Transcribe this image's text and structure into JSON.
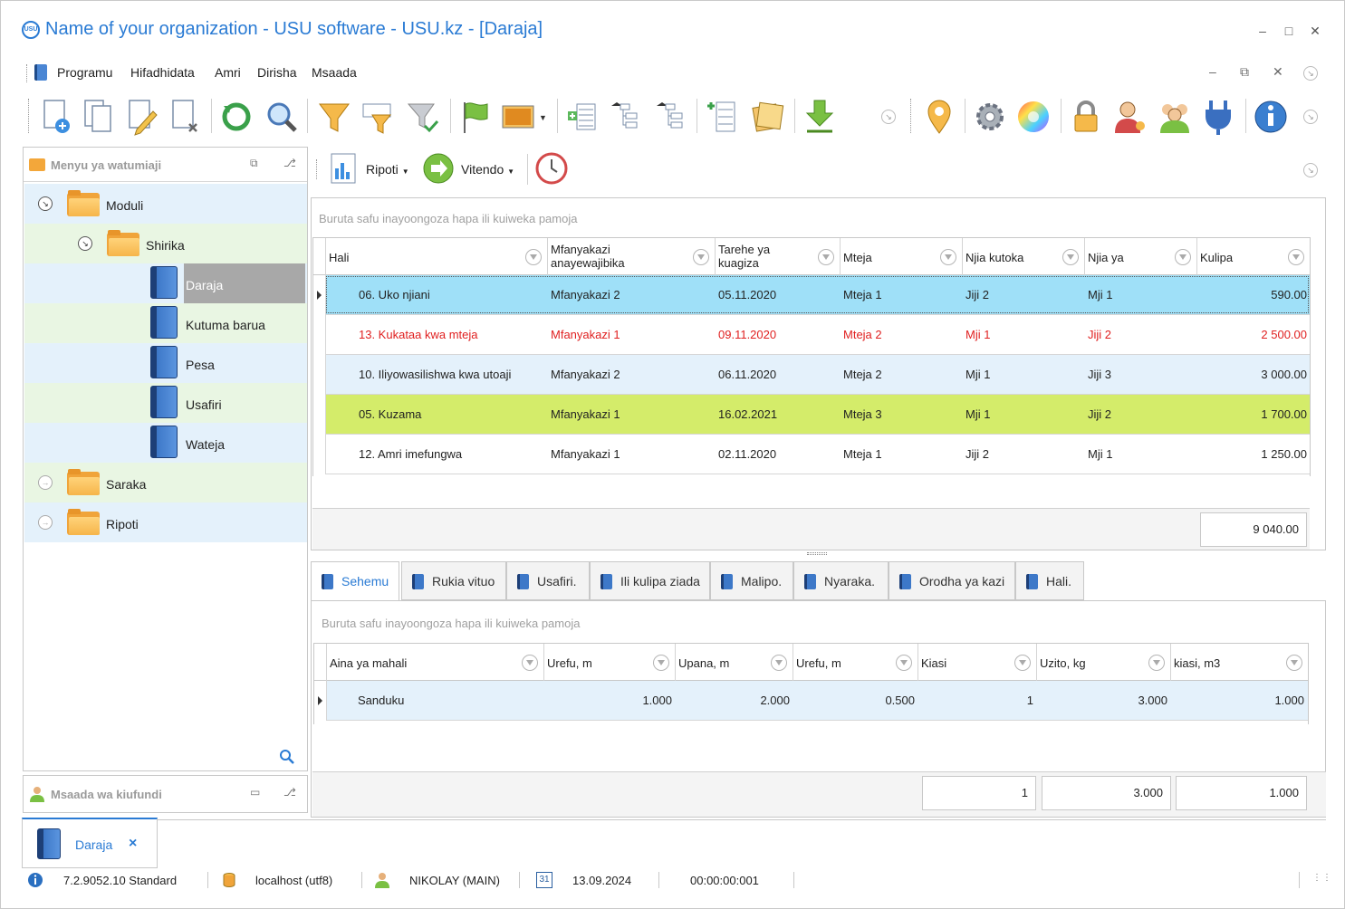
{
  "window": {
    "title": "Name of your organization - USU software - USU.kz - [Daraja]",
    "logo_text": "USU"
  },
  "menu": {
    "items": [
      "Programu",
      "Hifadhidata",
      "Amri",
      "Dirisha",
      "Msaada"
    ]
  },
  "left_panel": {
    "title": "Menyu ya watumiaji",
    "tree": [
      {
        "label": "Moduli"
      },
      {
        "label": "Shirika"
      },
      {
        "label": "Daraja"
      },
      {
        "label": "Kutuma barua"
      },
      {
        "label": "Pesa"
      },
      {
        "label": "Usafiri"
      },
      {
        "label": "Wateja"
      },
      {
        "label": "Saraka"
      },
      {
        "label": "Ripoti"
      }
    ]
  },
  "support_panel": {
    "title": "Msaada wa kiufundi"
  },
  "sub_toolbar": {
    "reports": "Ripoti",
    "actions": "Vitendo"
  },
  "grid1": {
    "group_hint": "Buruta safu inayoongoza hapa ili kuiweka pamoja",
    "columns": [
      {
        "label": "Hali"
      },
      {
        "label": "Mfanyakazi anayewajibika"
      },
      {
        "label": "Tarehe ya kuagiza"
      },
      {
        "label": "Mteja"
      },
      {
        "label": "Njia kutoka"
      },
      {
        "label": "Njia ya"
      },
      {
        "label": "Kulipa"
      }
    ],
    "rows": [
      {
        "hali": "06. Uko njiani",
        "employee": "Mfanyakazi 2",
        "date": "05.11.2020",
        "client": "Mteja 1",
        "from": "Jiji 2",
        "to": "Mji 1",
        "pay": "590.00",
        "style": "selected"
      },
      {
        "hali": "13. Kukataa kwa mteja",
        "employee": "Mfanyakazi 1",
        "date": "09.11.2020",
        "client": "Mteja 2",
        "from": "Mji 1",
        "to": "Jiji 2",
        "pay": "2 500.00",
        "style": "red"
      },
      {
        "hali": "10. Iliyowasilishwa kwa utoaji",
        "employee": "Mfanyakazi 2",
        "date": "06.11.2020",
        "client": "Mteja 2",
        "from": "Mji 1",
        "to": "Jiji 3",
        "pay": "3 000.00",
        "style": "blue"
      },
      {
        "hali": "05. Kuzama",
        "employee": "Mfanyakazi 1",
        "date": "16.02.2021",
        "client": "Mteja 3",
        "from": "Mji 1",
        "to": "Jiji 2",
        "pay": "1 700.00",
        "style": "green"
      },
      {
        "hali": "12. Amri imefungwa",
        "employee": "Mfanyakazi 1",
        "date": "02.11.2020",
        "client": "Mteja 1",
        "from": "Jiji 2",
        "to": "Mji 1",
        "pay": "1 250.00",
        "style": "white"
      }
    ],
    "total": "9 040.00"
  },
  "tabs": [
    "Sehemu",
    "Rukia vituo",
    "Usafiri.",
    "Ili kulipa ziada",
    "Malipo.",
    "Nyaraka.",
    "Orodha ya kazi",
    "Hali."
  ],
  "grid2": {
    "group_hint": "Buruta safu inayoongoza hapa ili kuiweka pamoja",
    "columns": [
      {
        "label": "Aina ya mahali"
      },
      {
        "label": "Urefu, m"
      },
      {
        "label": "Upana, m"
      },
      {
        "label": "Urefu, m"
      },
      {
        "label": "Kiasi"
      },
      {
        "label": "Uzito, kg"
      },
      {
        "label": "kiasi, m3"
      }
    ],
    "rows": [
      {
        "type": "Sanduku",
        "length": "1.000",
        "width": "2.000",
        "height": "0.500",
        "qty": "1",
        "weight": "3.000",
        "volume": "1.000"
      }
    ],
    "totals": {
      "qty": "1",
      "weight": "3.000",
      "volume": "1.000"
    }
  },
  "doc_tab": {
    "label": "Daraja",
    "close": "×"
  },
  "status": {
    "version": "7.2.9052.10 Standard",
    "db": "localhost (utf8)",
    "user": "NIKOLAY (MAIN)",
    "calendar_day": "31",
    "date": "13.09.2024",
    "timer": "00:00:00:001"
  },
  "colors": {
    "accent": "#2a7bd4",
    "row_selected": "#9fe0f8",
    "row_red_text": "#e02020",
    "row_blue": "#e4f1fb",
    "row_green": "#d4ec6a"
  }
}
